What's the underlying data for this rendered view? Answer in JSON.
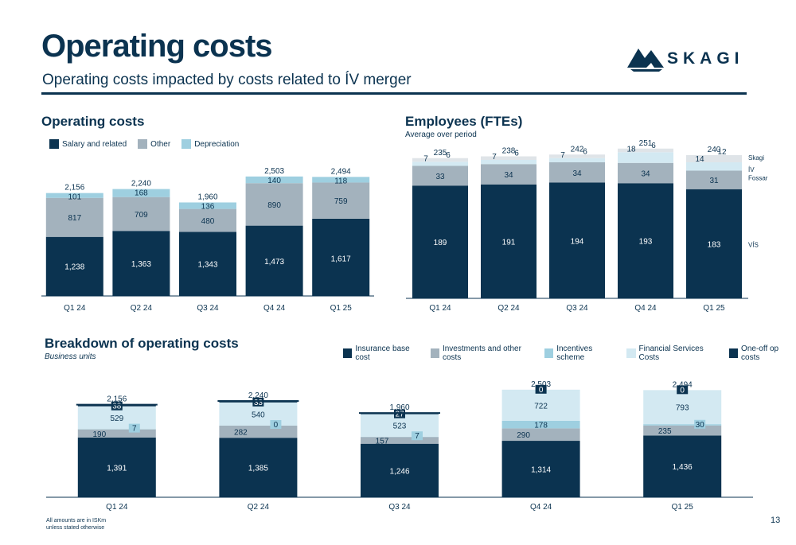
{
  "page": {
    "title": "Operating costs",
    "subtitle": "Operating costs impacted by costs related to ÍV merger",
    "logo_text": "SKAGI",
    "page_number": "13",
    "footnote": "All amounts are in ISKm unless stated otherwise"
  },
  "colors": {
    "navy": "#0b3350",
    "grey": "#a3b2bd",
    "light_blue": "#9ecfe0",
    "pale_blue": "#d3e9f2",
    "pale_grey": "#dfe4e8"
  },
  "chart_data": [
    {
      "id": "opcosts",
      "type": "bar",
      "stacked": true,
      "title": "Operating costs",
      "categories": [
        "Q1 24",
        "Q2 24",
        "Q3 24",
        "Q4 24",
        "Q1 25"
      ],
      "series": [
        {
          "name": "Salary and related",
          "values": [
            1238,
            1363,
            1343,
            1473,
            1617
          ],
          "labels": [
            "1,238",
            "1,363",
            "1,343",
            "1,473",
            "1,617"
          ],
          "color": "#0b3350"
        },
        {
          "name": "Other",
          "values": [
            817,
            709,
            480,
            890,
            759
          ],
          "labels": [
            "817",
            "709",
            "480",
            "890",
            "759"
          ],
          "color": "#a3b2bd"
        },
        {
          "name": "Depreciation",
          "values": [
            101,
            168,
            136,
            140,
            118
          ],
          "labels": [
            "101",
            "168",
            "136",
            "140",
            "118"
          ],
          "color": "#9ecfe0"
        }
      ],
      "totals": [
        "2,156",
        "2,240",
        "1,960",
        "2,503",
        "2,494"
      ],
      "legend": "top-left"
    },
    {
      "id": "ftes",
      "type": "bar",
      "stacked": true,
      "title": "Employees (FTEs)",
      "subtitle": "Average over period",
      "categories": [
        "Q1 24",
        "Q2 24",
        "Q3 24",
        "Q4 24",
        "Q1 25"
      ],
      "series": [
        {
          "name": "VÍS",
          "values": [
            189,
            191,
            194,
            193,
            183
          ],
          "labels": [
            "189",
            "191",
            "194",
            "193",
            "183"
          ],
          "color": "#0b3350"
        },
        {
          "name": "Fossar",
          "values": [
            33,
            34,
            34,
            34,
            31
          ],
          "labels": [
            "33",
            "34",
            "34",
            "34",
            "31"
          ],
          "color": "#a3b2bd"
        },
        {
          "name": "ÍV",
          "values": [
            7,
            7,
            7,
            18,
            14
          ],
          "labels": [
            "7",
            "7",
            "7",
            "18",
            "14"
          ],
          "color": "#d3e9f2"
        },
        {
          "name": "Skagi",
          "values": [
            6,
            6,
            6,
            6,
            12
          ],
          "labels": [
            "6",
            "6",
            "6",
            "6",
            "12"
          ],
          "color": "#dfe4e8"
        }
      ],
      "totals": [
        "235",
        "238",
        "242",
        "251",
        "240"
      ],
      "legend": "right"
    },
    {
      "id": "breakdown",
      "type": "bar",
      "stacked": true,
      "title": "Breakdown of operating costs",
      "subtitle": "Business units",
      "categories": [
        "Q1 24",
        "Q2 24",
        "Q3 24",
        "Q4 24",
        "Q1 25"
      ],
      "series": [
        {
          "name": "Insurance base cost",
          "values": [
            1391,
            1385,
            1246,
            1314,
            1436
          ],
          "labels": [
            "1,391",
            "1,385",
            "1,246",
            "1,314",
            "1,436"
          ],
          "color": "#0b3350"
        },
        {
          "name": "Investments and other costs",
          "values": [
            190,
            282,
            157,
            290,
            235
          ],
          "labels": [
            "190",
            "282",
            "157",
            "290",
            "235"
          ],
          "color": "#a3b2bd"
        },
        {
          "name": "Incentives scheme",
          "values": [
            7,
            0,
            7,
            178,
            30
          ],
          "labels": [
            "7",
            "0",
            "7",
            "178",
            "30"
          ],
          "color": "#9ecfe0"
        },
        {
          "name": "Financial Services Costs",
          "values": [
            529,
            540,
            523,
            722,
            793
          ],
          "labels": [
            "529",
            "540",
            "523",
            "722",
            "793"
          ],
          "color": "#d3e9f2"
        },
        {
          "name": "One-off op costs",
          "values": [
            38,
            33,
            27,
            0,
            0
          ],
          "labels": [
            "38",
            "33",
            "27",
            "0",
            "0"
          ],
          "color": "#0b3350"
        }
      ],
      "totals": [
        "2,156",
        "2,240",
        "1,960",
        "2,503",
        "2,494"
      ],
      "legend": "top-right"
    }
  ]
}
